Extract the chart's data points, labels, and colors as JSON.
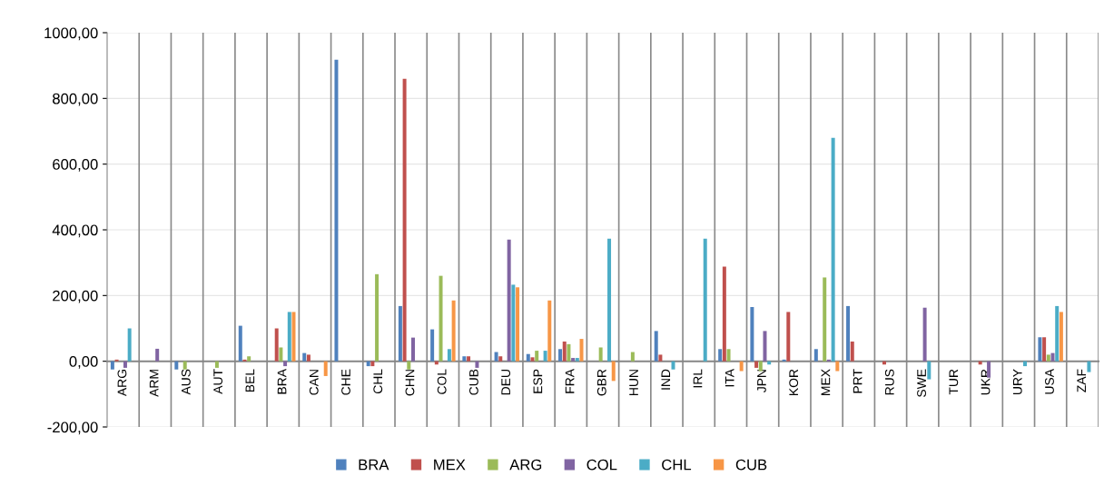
{
  "chart_data": {
    "type": "bar",
    "categories": [
      "ARG",
      "ARM",
      "AUS",
      "AUT",
      "BEL",
      "BRA",
      "CAN",
      "CHE",
      "CHL",
      "CHN",
      "COL",
      "CUB",
      "DEU",
      "ESP",
      "FRA",
      "GBR",
      "HUN",
      "IND",
      "IRL",
      "ITA",
      "JPN",
      "KOR",
      "MEX",
      "PRT",
      "RUS",
      "SWE",
      "TUR",
      "UKR",
      "URY",
      "USA",
      "ZAF"
    ],
    "series": [
      {
        "name": "BRA",
        "color": "#4f81bd",
        "values": [
          -25,
          0,
          -25,
          0,
          108,
          0,
          25,
          918,
          -15,
          168,
          97,
          15,
          28,
          22,
          37,
          0,
          0,
          92,
          0,
          37,
          165,
          5,
          37,
          168,
          0,
          0,
          0,
          0,
          0,
          73,
          0
        ]
      },
      {
        "name": "MEX",
        "color": "#c0504d",
        "values": [
          5,
          0,
          0,
          0,
          5,
          100,
          20,
          0,
          -15,
          860,
          -10,
          15,
          15,
          12,
          60,
          null,
          0,
          20,
          0,
          288,
          -20,
          150,
          0,
          60,
          -10,
          0,
          0,
          -10,
          0,
          73,
          0
        ]
      },
      {
        "name": "ARG",
        "color": "#9bbb59",
        "values": [
          0,
          0,
          -25,
          -20,
          15,
          42,
          0,
          0,
          265,
          -25,
          260,
          0,
          0,
          32,
          52,
          42,
          28,
          0,
          0,
          37,
          -30,
          0,
          255,
          0,
          0,
          0,
          0,
          0,
          0,
          20,
          0
        ]
      },
      {
        "name": "COL",
        "color": "#8064a2",
        "values": [
          -20,
          38,
          0,
          0,
          0,
          -15,
          0,
          0,
          0,
          72,
          0,
          -20,
          370,
          null,
          10,
          0,
          0,
          0,
          0,
          0,
          92,
          0,
          5,
          0,
          0,
          163,
          0,
          -50,
          0,
          25,
          0
        ]
      },
      {
        "name": "CHL",
        "color": "#4bacc6",
        "values": [
          100,
          0,
          0,
          0,
          0,
          150,
          0,
          0,
          0,
          0,
          37,
          0,
          233,
          32,
          10,
          373,
          0,
          -25,
          373,
          0,
          -10,
          0,
          680,
          0,
          0,
          -55,
          0,
          0,
          -15,
          168,
          -33
        ]
      },
      {
        "name": "CUB",
        "color": "#f79646",
        "values": [
          0,
          0,
          0,
          0,
          0,
          150,
          -45,
          0,
          0,
          0,
          185,
          0,
          225,
          185,
          68,
          -60,
          0,
          0,
          0,
          -30,
          0,
          0,
          -30,
          0,
          0,
          0,
          0,
          0,
          0,
          150,
          0
        ]
      }
    ],
    "ylim": [
      -200,
      1000
    ],
    "yticks": [
      {
        "value": -200,
        "label": "-200,00"
      },
      {
        "value": 0,
        "label": "0,00"
      },
      {
        "value": 200,
        "label": "200,00"
      },
      {
        "value": 400,
        "label": "400,00"
      },
      {
        "value": 600,
        "label": "600,00"
      },
      {
        "value": 800,
        "label": "800,00"
      },
      {
        "value": 1000,
        "label": "1000,00"
      }
    ],
    "grid": true,
    "legend": "bottom"
  }
}
